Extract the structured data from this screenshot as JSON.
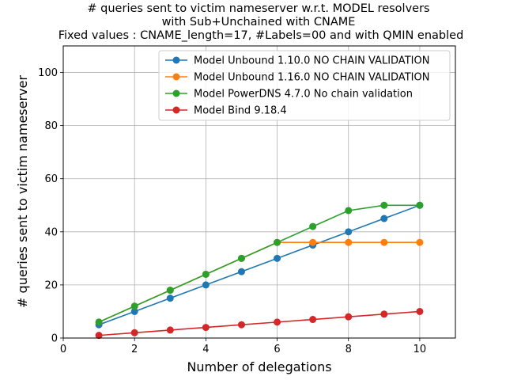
{
  "chart_data": {
    "type": "line",
    "title_lines": [
      "# queries sent to victim nameserver w.r.t. MODEL resolvers",
      "with Sub+Unchained with CNAME",
      "Fixed values : CNAME_length=17, #Labels=00 and with QMIN enabled"
    ],
    "xlabel": "Number of delegations",
    "ylabel": "# queries sent to victim nameserver",
    "xlim": [
      0,
      11
    ],
    "ylim": [
      0,
      110
    ],
    "xticks": [
      0,
      2,
      4,
      6,
      8,
      10
    ],
    "yticks": [
      0,
      20,
      40,
      60,
      80,
      100
    ],
    "grid": true,
    "legend_position": "top-right",
    "x": [
      1,
      2,
      3,
      4,
      5,
      6,
      7,
      8,
      9,
      10
    ],
    "series": [
      {
        "name": "Model Unbound 1.10.0 NO CHAIN VALIDATION",
        "color": "#1f77b4",
        "values": [
          5,
          10,
          15,
          20,
          25,
          30,
          35,
          40,
          45,
          50
        ]
      },
      {
        "name": "Model Unbound 1.16.0 NO CHAIN VALIDATION",
        "color": "#ff7f0e",
        "values": [
          6,
          12,
          18,
          24,
          30,
          36,
          36,
          36,
          36,
          36
        ]
      },
      {
        "name": "Model PowerDNS 4.7.0 No chain validation",
        "color": "#2ca02c",
        "values": [
          6,
          12,
          18,
          24,
          30,
          36,
          42,
          48,
          50,
          50
        ]
      },
      {
        "name": "Model Bind 9.18.4",
        "color": "#d62728",
        "values": [
          1,
          2,
          3,
          4,
          5,
          6,
          7,
          8,
          9,
          10
        ]
      }
    ]
  }
}
